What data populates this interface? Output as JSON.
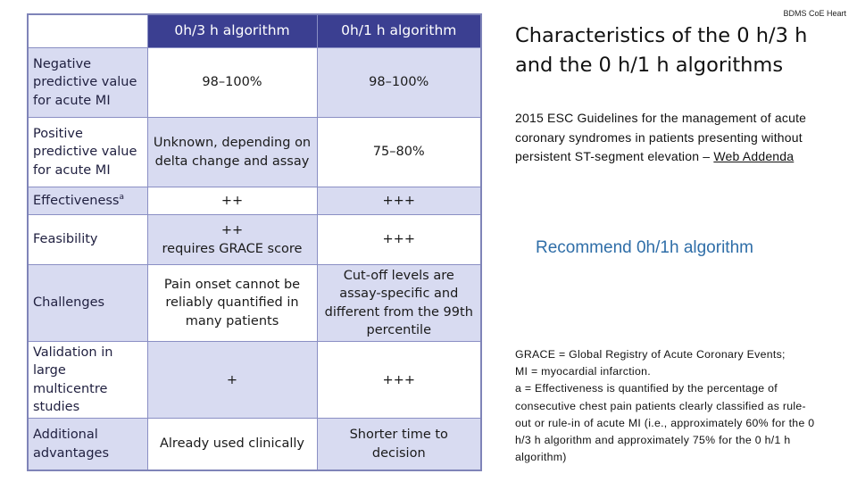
{
  "header_tag": "BDMS CoE Heart",
  "title": "Characteristics of the 0 h/3 h and the 0 h/1 h algorithms",
  "subtitle": {
    "text": "2015 ESC Guidelines for the management of acute coronary syndromes in patients presenting without persistent ST-segment elevation – ",
    "link": "Web Addenda"
  },
  "recommendation": "Recommend 0h/1h algorithm",
  "footnotes": {
    "line1": "GRACE = Global Registry of Acute Coronary Events;",
    "line2": "MI = myocardial infarction.",
    "line3": "a = Effectiveness is quantified by the percentage of consecutive chest pain patients clearly classified as rule-out or rule-in of acute MI (i.e., approximately 60% for the 0 h/3 h algorithm and approximately 75% for the 0 h/1 h algorithm)"
  },
  "table": {
    "columns": [
      "0h/3 h algorithm",
      "0h/1 h algorithm"
    ],
    "rows": [
      {
        "label": "Negative predictive value for acute MI",
        "c1": "98–100%",
        "c2": "98–100%"
      },
      {
        "label": "Positive predictive value for acute MI",
        "c1": "Unknown, depending on delta change and assay",
        "c2": "75–80%"
      },
      {
        "label": "Effectiveness",
        "label_mark": "a",
        "c1": "++",
        "c2": "+++"
      },
      {
        "label": "Feasibility",
        "c1_line1": "++",
        "c1_line2": "requires GRACE score",
        "c2": "+++"
      },
      {
        "label": "Challenges",
        "c1": "Pain onset cannot be reliably quantified in many patients",
        "c2": "Cut-off levels are assay-specific and different from the 99th percentile"
      },
      {
        "label": "Validation in large multicentre studies",
        "c1": "+",
        "c2": "+++"
      },
      {
        "label": "Additional advantages",
        "c1": "Already used clinically",
        "c2": "Shorter time to decision"
      }
    ]
  }
}
